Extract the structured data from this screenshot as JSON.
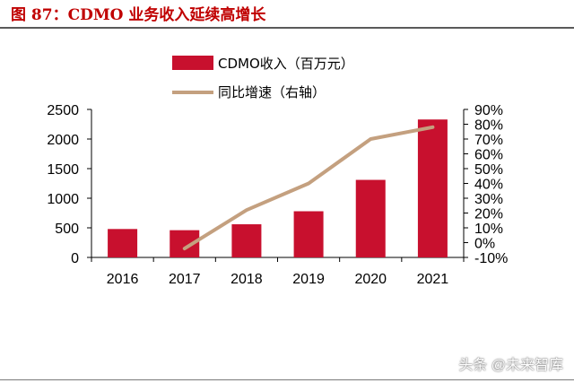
{
  "page": {
    "title": "图 87：CDMO 业务收入延续高增长",
    "watermark": "头条 @未来智库"
  },
  "chart_data": {
    "type": "bar",
    "categories": [
      "2016",
      "2017",
      "2018",
      "2019",
      "2020",
      "2021"
    ],
    "series": [
      {
        "name": "CDMO收入（百万元）",
        "type": "bar",
        "axis": "left",
        "color": "#c8102e",
        "values": [
          480,
          460,
          560,
          780,
          1310,
          2330
        ]
      },
      {
        "name": "同比增速（右轴）",
        "type": "line",
        "axis": "right",
        "color": "#c4a07f",
        "values": [
          null,
          -4,
          22,
          40,
          70,
          78
        ]
      }
    ],
    "y_left": {
      "min": 0,
      "max": 2500,
      "ticks": [
        "0",
        "500",
        "1000",
        "1500",
        "2000",
        "2500"
      ]
    },
    "y_right": {
      "min": -10,
      "max": 90,
      "ticks": [
        "-10%",
        "0%",
        "10%",
        "20%",
        "30%",
        "40%",
        "50%",
        "60%",
        "70%",
        "80%",
        "90%"
      ]
    },
    "legend_position": "top",
    "grid": false
  }
}
